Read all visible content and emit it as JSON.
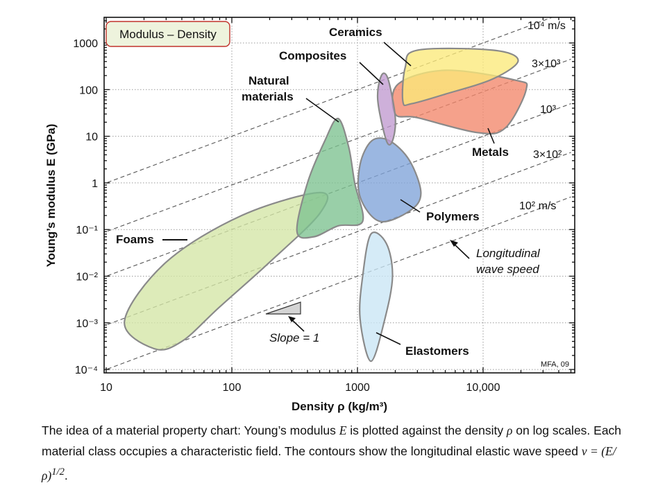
{
  "chart_data": {
    "type": "scatter",
    "title": "Modulus – Density",
    "xlabel": "Density ρ (kg/m³)",
    "ylabel": "Young’s modulus E (GPa)",
    "xscale": "log",
    "yscale": "log",
    "xlim": [
      10,
      30000
    ],
    "ylim": [
      0.0001,
      3000
    ],
    "grid": "dotted",
    "x_ticks": [
      {
        "value": 10,
        "label": "10"
      },
      {
        "value": 100,
        "label": "100"
      },
      {
        "value": 1000,
        "label": "1000"
      },
      {
        "value": 10000,
        "label": "10,000"
      }
    ],
    "y_ticks": [
      {
        "value": 1000,
        "label": "1000"
      },
      {
        "value": 100,
        "label": "100"
      },
      {
        "value": 10,
        "label": "10"
      },
      {
        "value": 1,
        "label": "1"
      },
      {
        "value": 0.1,
        "label": "10⁻¹"
      },
      {
        "value": 0.01,
        "label": "10⁻²"
      },
      {
        "value": 0.001,
        "label": "10⁻³"
      },
      {
        "value": 0.0001,
        "label": "10⁻⁴"
      }
    ],
    "fields": [
      {
        "name": "Foams",
        "color": "#d4e6a5",
        "stroke": "#8a8a8a",
        "points": [
          [
            24,
            0.00028
          ],
          [
            14,
            0.0011
          ],
          [
            30,
            0.02
          ],
          [
            120,
            0.2
          ],
          [
            500,
            0.62
          ],
          [
            500,
            0.22
          ],
          [
            200,
            0.02
          ],
          [
            80,
            0.0022
          ],
          [
            40,
            0.0004
          ]
        ]
      },
      {
        "name": "Natural materials",
        "color": "#7cc28f",
        "stroke": "#8a8a8a",
        "points": [
          [
            330,
            0.09
          ],
          [
            400,
            1
          ],
          [
            550,
            8
          ],
          [
            700,
            24
          ],
          [
            850,
            6
          ],
          [
            950,
            1
          ],
          [
            1100,
            0.15
          ],
          [
            700,
            0.12
          ],
          [
            450,
            0.07
          ]
        ]
      },
      {
        "name": "Polymers",
        "color": "#7fa3d8",
        "stroke": "#8a8a8a",
        "points": [
          [
            1500,
            0.15
          ],
          [
            1050,
            0.5
          ],
          [
            1050,
            2.5
          ],
          [
            1300,
            8
          ],
          [
            1800,
            8
          ],
          [
            2600,
            3
          ],
          [
            3200,
            0.6
          ],
          [
            2600,
            0.25
          ]
        ]
      },
      {
        "name": "Elastomers",
        "color": "#c9e6f5",
        "stroke": "#8a8a8a",
        "points": [
          [
            1280,
            0.08
          ],
          [
            1100,
            0.01
          ],
          [
            1050,
            0.0012
          ],
          [
            1280,
            0.00015
          ],
          [
            1650,
            0.0012
          ],
          [
            1900,
            0.01
          ],
          [
            1700,
            0.05
          ]
        ]
      },
      {
        "name": "Metals",
        "color": "#f2876a",
        "stroke": "#8a8a8a",
        "points": [
          [
            2000,
            30
          ],
          [
            2100,
            130
          ],
          [
            5000,
            260
          ],
          [
            18000,
            160
          ],
          [
            22000,
            100
          ],
          [
            15000,
            15
          ],
          [
            9000,
            12
          ],
          [
            3000,
            25
          ]
        ]
      },
      {
        "name": "Ceramics",
        "color": "#fbe97a",
        "stroke": "#8a8a8a",
        "points": [
          [
            2300,
            55
          ],
          [
            2400,
            300
          ],
          [
            3000,
            700
          ],
          [
            12000,
            700
          ],
          [
            19000,
            420
          ],
          [
            12000,
            170
          ],
          [
            5000,
            80
          ],
          [
            2700,
            50
          ]
        ]
      },
      {
        "name": "Composites",
        "color": "#c09ad0",
        "stroke": "#8a8a8a",
        "points": [
          [
            1700,
            8
          ],
          [
            1450,
            60
          ],
          [
            1550,
            200
          ],
          [
            1750,
            170
          ],
          [
            2000,
            25
          ],
          [
            1900,
            8
          ]
        ]
      }
    ],
    "wave_speed_lines": [
      {
        "speed": 10000,
        "label": "10⁴ m/s"
      },
      {
        "speed": 3000,
        "label": "3×10³"
      },
      {
        "speed": 1000,
        "label": "10³"
      },
      {
        "speed": 300,
        "label": "3×10²"
      },
      {
        "speed": 100,
        "label": "10² m/s"
      }
    ],
    "annotations": [
      {
        "text": "Ceramics",
        "style": "bold"
      },
      {
        "text": "Composites",
        "style": "bold"
      },
      {
        "text": "Natural",
        "style": "bold"
      },
      {
        "text": "materials",
        "style": "bold"
      },
      {
        "text": "Foams",
        "style": "bold"
      },
      {
        "text": "Metals",
        "style": "bold"
      },
      {
        "text": "Polymers",
        "style": "bold"
      },
      {
        "text": "Elastomers",
        "style": "bold"
      },
      {
        "text": "Longitudinal",
        "style": "italic"
      },
      {
        "text": "wave speed",
        "style": "italic"
      },
      {
        "text": "Slope = 1",
        "style": "italic"
      },
      {
        "text": "MFA, 09",
        "style": "small"
      }
    ]
  },
  "caption": {
    "text_1": "The idea of a material property chart: Young’s modulus",
    "sym_E": "E",
    "text_2": "is plotted against the density",
    "sym_rho": "ρ",
    "text_3": "on log scales. Each material class occupies a characteristic field. The contours show the longitudinal elastic wave speed",
    "formula": "ν = (E/ρ)",
    "formula_exp": "1/2",
    "text_end": "."
  }
}
